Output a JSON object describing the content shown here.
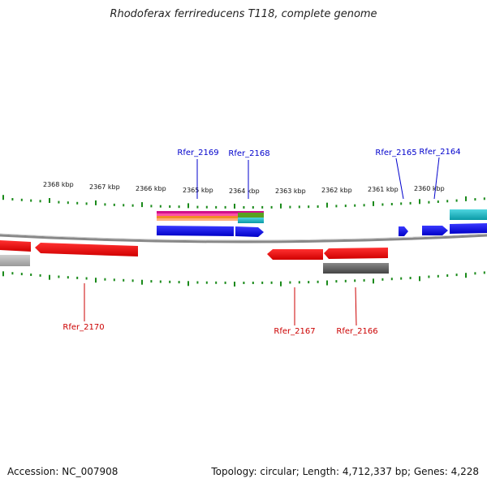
{
  "title": "Rhodoferax ferrireducens T118, complete genome",
  "footer": {
    "accession": "Accession: NC_007908",
    "stats": "Topology: circular; Length: 4,712,337 bp; Genes: 4,228"
  },
  "kbp_labels": [
    "2368 kbp",
    "2367 kbp",
    "2366 kbp",
    "2365 kbp",
    "2364 kbp",
    "2363 kbp",
    "2362 kbp",
    "2361 kbp",
    "2360 kbp"
  ],
  "gene_labels": {
    "top": [
      "Rfer_2169",
      "Rfer_2168",
      "Rfer_2165",
      "Rfer_2164"
    ],
    "bottom": [
      "Rfer_2170",
      "Rfer_2167",
      "Rfer_2166"
    ]
  },
  "colors": {
    "forward_strand": "#0000ee",
    "reverse_strand": "#ee0000",
    "tick": "#1a8a1a",
    "backbone": "#888888"
  }
}
